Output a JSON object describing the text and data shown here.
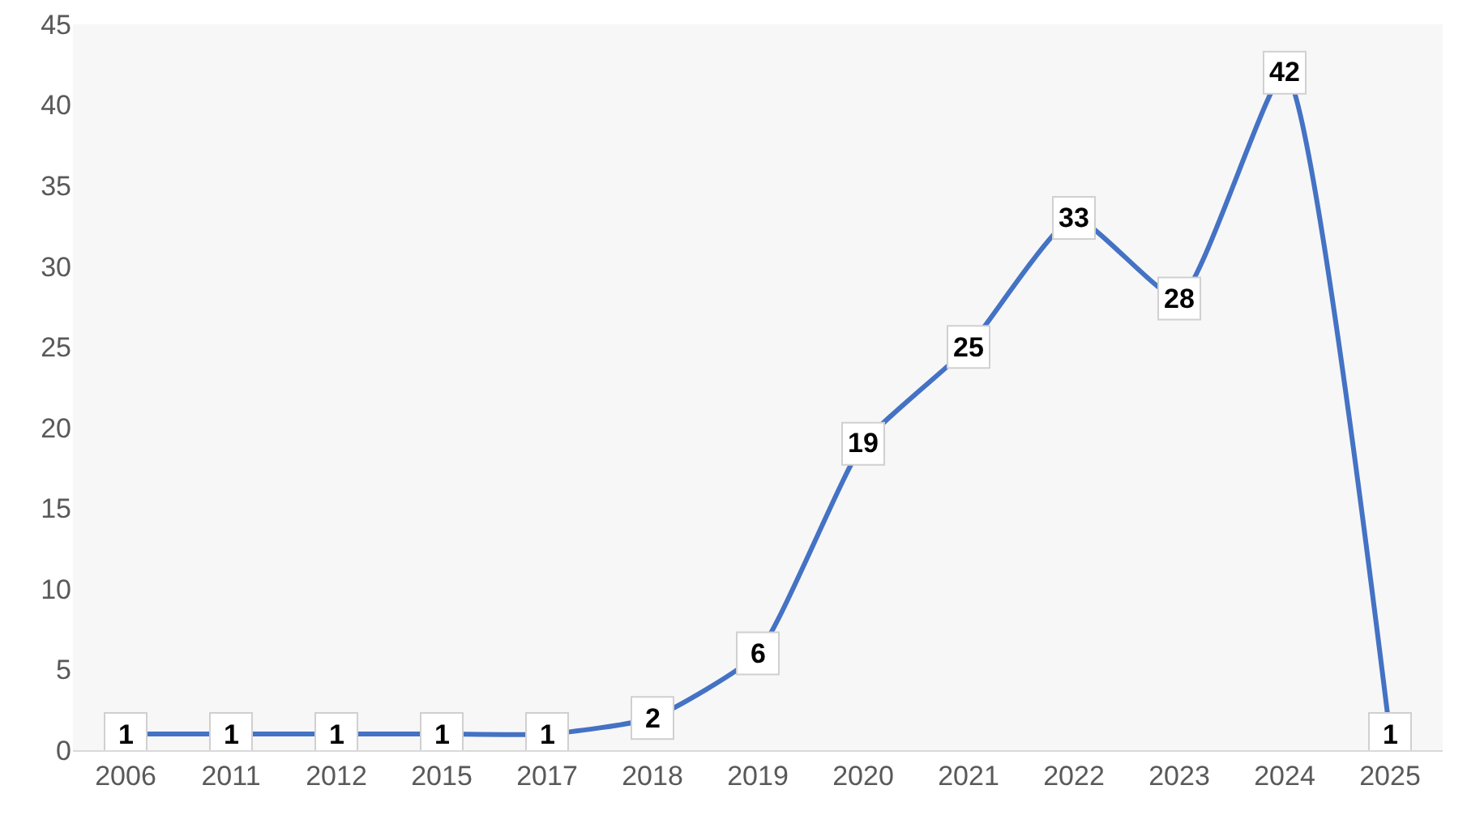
{
  "chart_data": {
    "type": "line",
    "categories": [
      "2006",
      "2011",
      "2012",
      "2015",
      "2017",
      "2018",
      "2019",
      "2020",
      "2021",
      "2022",
      "2023",
      "2024",
      "2025"
    ],
    "series": [
      {
        "color": "#4472c4",
        "values": [
          1,
          1,
          1,
          1,
          1,
          2,
          6,
          19,
          25,
          33,
          28,
          42,
          1
        ]
      }
    ],
    "ylim": [
      0,
      45
    ],
    "yticks": [
      0,
      5,
      10,
      15,
      20,
      25,
      30,
      35,
      40,
      45
    ],
    "grid": false,
    "marker": "square",
    "line_style": "solid",
    "data_labels": true
  }
}
